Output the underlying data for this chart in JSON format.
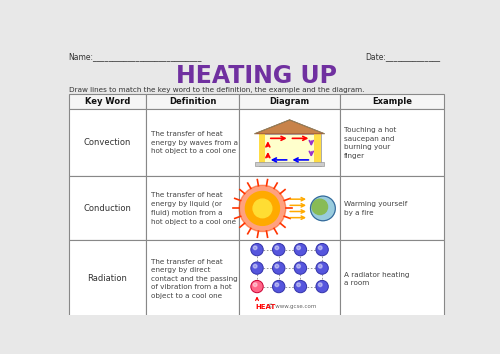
{
  "title": "HEATING UP",
  "title_color": "#7030A0",
  "name_label": "Name:____________________________",
  "date_label": "Date:______________",
  "instruction": "Draw lines to match the key word to the definition, the example and the diagram.",
  "col_headers": [
    "Key Word",
    "Definition",
    "Diagram",
    "Example"
  ],
  "keywords": [
    "Convection",
    "Conduction",
    "Radiation"
  ],
  "definitions": [
    "The transfer of heat\nenergy by waves from a\nhot object to a cool one",
    "The transfer of heat\nenergy by liquid (or\nfluid) motion from a\nhot object to a cool one",
    "The transfer of heat\nenergy by direct\ncontact and the passing\nof vibration from a hot\nobject to a cool one"
  ],
  "examples": [
    "Touching a hot\nsaucepan and\nburning your\nfinger",
    "Warming yourself\nby a fire",
    "A radiator heating\na room"
  ],
  "bg_color": "#e8e8e8",
  "border_color": "#888888",
  "text_color": "#333333"
}
